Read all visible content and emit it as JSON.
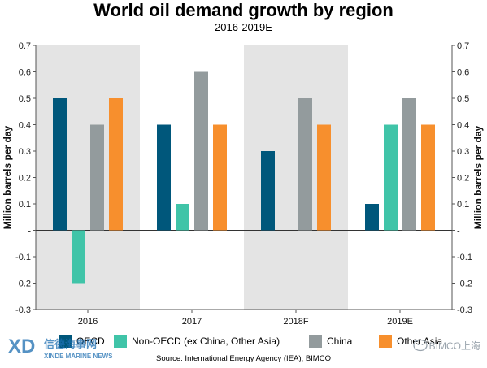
{
  "chart_data": {
    "type": "bar",
    "title": "World oil demand growth by region",
    "subtitle": "2016-2019E",
    "ylabel_left": "Million barrels per day",
    "ylabel_right": "Million barrels per day",
    "categories": [
      "2016",
      "2017",
      "2018F",
      "2019E"
    ],
    "shaded_categories": [
      "2016",
      "2018F"
    ],
    "ylim": [
      -0.3,
      0.7
    ],
    "yticks": [
      "0.7",
      "0.6",
      "0.5",
      "0.4",
      "0.3",
      "0.2",
      "0.1",
      "-",
      "-0.1",
      "-0.2",
      "-0.3"
    ],
    "series": [
      {
        "name": "OECD",
        "color": "#00577b",
        "values": [
          0.5,
          0.4,
          0.3,
          0.1
        ]
      },
      {
        "name": "Non-OECD (ex China, Other Asia)",
        "color": "#40c4a8",
        "values": [
          -0.2,
          0.1,
          0.0,
          0.4
        ]
      },
      {
        "name": "China",
        "color": "#939b9d",
        "values": [
          0.4,
          0.6,
          0.5,
          0.5
        ]
      },
      {
        "name": "Other Asia",
        "color": "#f78f2d",
        "values": [
          0.5,
          0.4,
          0.4,
          0.4
        ]
      }
    ],
    "grid": false,
    "legend_position": "bottom"
  },
  "source": "Source: International Energy Agency (IEA), BIMCO",
  "watermark_left": {
    "chinese": "信德海事网",
    "english": "XINDE MARINE NEWS"
  },
  "watermark_right": "BIMCO上海",
  "legend_labels": {
    "oecd": "OECD",
    "non_oecd": "Non-OECD (ex China, Other Asia)",
    "china": "China",
    "other_asia": "Other Asia"
  }
}
